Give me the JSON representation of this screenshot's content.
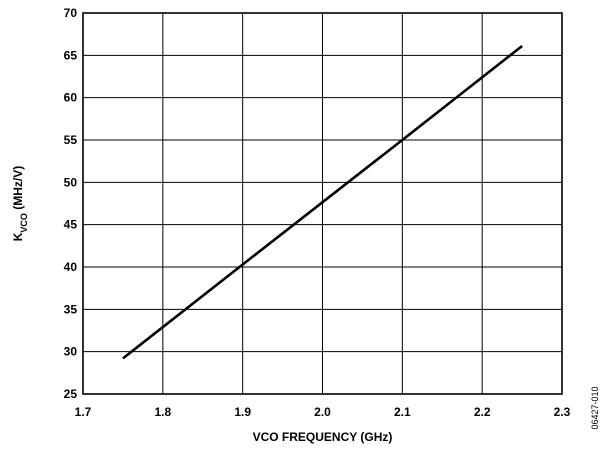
{
  "chart_data": {
    "type": "line",
    "title": "",
    "xlabel": "VCO FREQUENCY (GHz)",
    "ylabel": {
      "main": "K",
      "subscript": "VCO",
      "units": " (MHz/V)"
    },
    "xlim": [
      1.7,
      2.3
    ],
    "ylim": [
      25,
      70
    ],
    "x_ticks": [
      "1.7",
      "1.8",
      "1.9",
      "2.0",
      "2.1",
      "2.2",
      "2.3"
    ],
    "y_ticks": [
      "25",
      "30",
      "35",
      "40",
      "45",
      "50",
      "55",
      "60",
      "65",
      "70"
    ],
    "grid": true,
    "series": [
      {
        "color": "#000000",
        "x": [
          1.75,
          1.9,
          2.1,
          2.25
        ],
        "y": [
          29.2,
          40.3,
          55.0,
          66.1
        ]
      }
    ],
    "figure_id": "06427-010"
  }
}
